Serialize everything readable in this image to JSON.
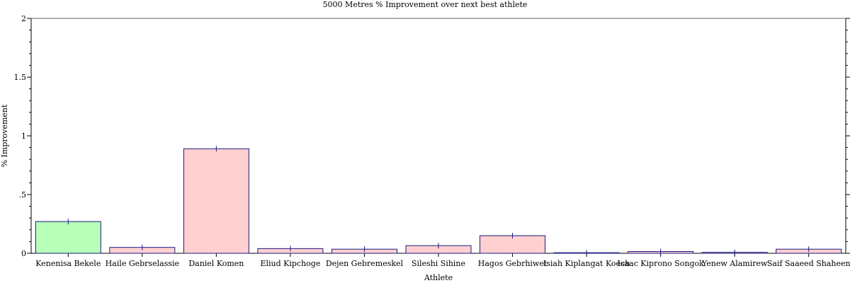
{
  "chart_data": {
    "type": "bar",
    "title": "5000 Metres % Improvement over next best athlete",
    "xlabel": "Athlete",
    "ylabel": "% Improvement",
    "ylim": [
      0,
      2
    ],
    "yticks": [
      {
        "value": 0,
        "label": "0"
      },
      {
        "value": 0.5,
        "label": ".5"
      },
      {
        "value": 1,
        "label": "1"
      },
      {
        "value": 1.5,
        "label": "1.5"
      },
      {
        "value": 2,
        "label": "2"
      }
    ],
    "categories": [
      "Kenenisa Bekele",
      "Haile Gebrselassie",
      "Daniel Komen",
      "Eliud Kipchoge",
      "Dejen Gebremeskel",
      "Sileshi Sihine",
      "Hagos Gebrhiwet",
      "Isiah Kiplangat Koech",
      "Isaac Kiprono Songok",
      "Yenew Alamirew",
      "Saif Saaeed Shaheen"
    ],
    "values": [
      0.27,
      0.05,
      0.89,
      0.04,
      0.035,
      0.065,
      0.15,
      0.005,
      0.015,
      0.008,
      0.035
    ],
    "highlight_index": 0,
    "colors": {
      "highlight_fill": "#b8ffb8",
      "bar_fill": "#ffd0d0",
      "bar_stroke": "#1a1a80",
      "axis": "#000000"
    },
    "grid": false,
    "legend": "none"
  }
}
